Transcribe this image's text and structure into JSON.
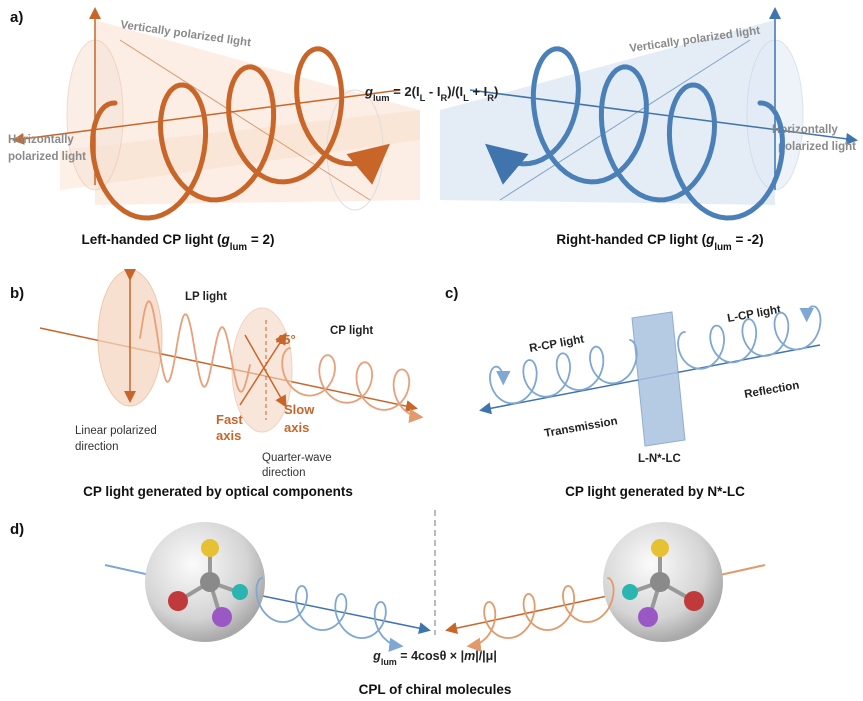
{
  "panel_a": {
    "label": "a)",
    "formula": [
      {
        "text": "g",
        "style": "italic"
      },
      {
        "text": "lum",
        "style": "sub"
      },
      {
        "text": " = 2(I"
      },
      {
        "text": "L",
        "style": "sub"
      },
      {
        "text": " - I"
      },
      {
        "text": "R",
        "style": "sub"
      },
      {
        "text": ")/(I"
      },
      {
        "text": "L",
        "style": "sub"
      },
      {
        "text": " + I"
      },
      {
        "text": "R",
        "style": "sub"
      },
      {
        "text": ")"
      }
    ],
    "left": {
      "vertical": "Vertically polarized light",
      "horizontal": [
        "Horizontally",
        "polarized light"
      ],
      "caption": [
        {
          "text": "Left-handed CP light ("
        },
        {
          "text": "g",
          "style": "italic"
        },
        {
          "text": "lum",
          "style": "sub"
        },
        {
          "text": " = 2)"
        }
      ]
    },
    "right": {
      "vertical": "Vertically polarized light",
      "horizontal": [
        "Horizontally",
        "polarized light"
      ],
      "caption": [
        {
          "text": "Right-handed CP light ("
        },
        {
          "text": "g",
          "style": "italic"
        },
        {
          "text": "lum",
          "style": "sub"
        },
        {
          "text": " = -2)"
        }
      ]
    }
  },
  "panel_b": {
    "label": "b)",
    "lp": "LP light",
    "cp": "CP light",
    "angle": "45°",
    "linear": [
      "Linear polarized",
      "direction"
    ],
    "fast": [
      "Fast",
      "axis"
    ],
    "slow": [
      "Slow",
      "axis"
    ],
    "quarter": [
      "Quarter-wave",
      "direction"
    ],
    "caption": "CP light generated by optical components"
  },
  "panel_c": {
    "label": "c)",
    "rcp": "R-CP light",
    "lcp": "L-CP light",
    "reflection": "Reflection",
    "transmission": "Transmission",
    "film": "L-N*-LC",
    "caption": "CP light generated by N*-LC"
  },
  "panel_d": {
    "label": "d)",
    "formula": [
      {
        "text": "g",
        "style": "italic"
      },
      {
        "text": "lum",
        "style": "sub"
      },
      {
        "text": " = 4cosθ × |"
      },
      {
        "text": "m",
        "style": "italic"
      },
      {
        "text": "|/|μ|"
      }
    ],
    "caption": "CPL of chiral molecules"
  }
}
